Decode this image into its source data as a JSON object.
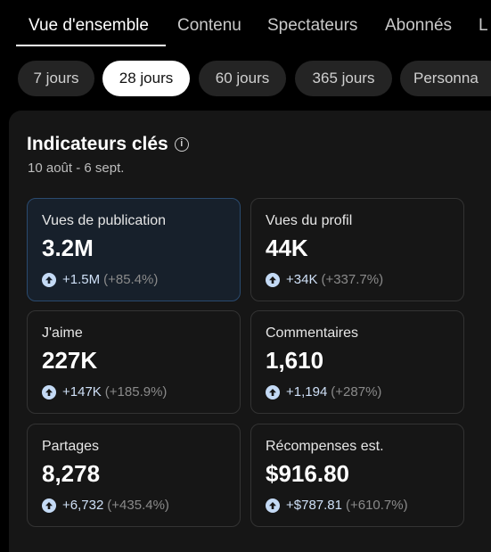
{
  "tabs": [
    {
      "label": "Vue d'ensemble",
      "active": true
    },
    {
      "label": "Contenu",
      "active": false
    },
    {
      "label": "Spectateurs",
      "active": false
    },
    {
      "label": "Abonnés",
      "active": false
    },
    {
      "label": "L",
      "active": false
    }
  ],
  "periods": [
    {
      "label": "7 jours",
      "active": false
    },
    {
      "label": "28 jours",
      "active": true
    },
    {
      "label": "60 jours",
      "active": false
    },
    {
      "label": "365 jours",
      "active": false
    },
    {
      "label": "Personna",
      "active": false
    }
  ],
  "panel": {
    "title": "Indicateurs clés",
    "date_range": "10 août - 6 sept."
  },
  "metrics": [
    {
      "label": "Vues de publication",
      "value": "3.2M",
      "delta": "+1.5M",
      "pct": "(+85.4%)"
    },
    {
      "label": "Vues du profil",
      "value": "44K",
      "delta": "+34K",
      "pct": "(+337.7%)"
    },
    {
      "label": "J'aime",
      "value": "227K",
      "delta": "+147K",
      "pct": "(+185.9%)"
    },
    {
      "label": "Commentaires",
      "value": "1,610",
      "delta": "+1,194",
      "pct": "(+287%)"
    },
    {
      "label": "Partages",
      "value": "8,278",
      "delta": "+6,732",
      "pct": "(+435.4%)"
    },
    {
      "label": "Récompenses est.",
      "value": "$916.80",
      "delta": "+$787.81",
      "pct": "(+610.7%)"
    }
  ],
  "colors": {
    "background": "#000000",
    "panel": "#161616",
    "highlight_border": "#2a4a6e",
    "delta_text": "#cfe0f7",
    "arrow_circle": "#c4daf5"
  }
}
